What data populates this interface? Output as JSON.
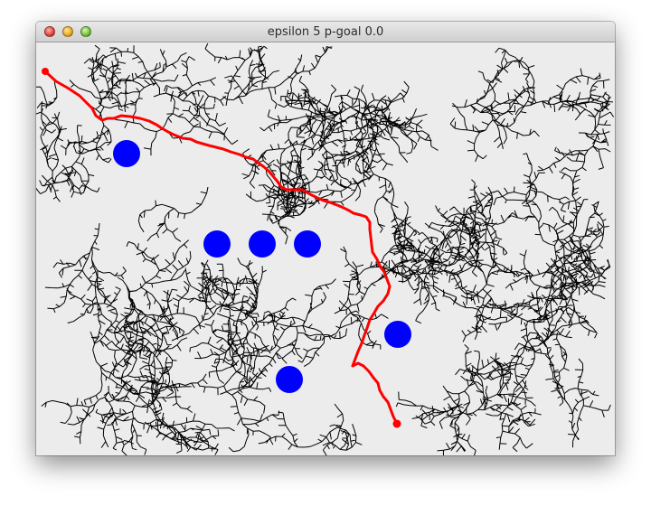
{
  "window": {
    "title": "epsilon 5 p-goal 0.0",
    "buttons": [
      "close-button",
      "minimize-button",
      "zoom-button"
    ]
  },
  "scene": {
    "colors": {
      "background": "#ececec",
      "tree": "#000000",
      "path": "#ff0000",
      "obstacle": "#0000ff"
    }
  }
}
